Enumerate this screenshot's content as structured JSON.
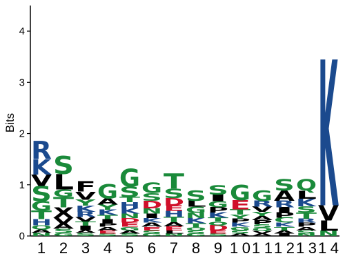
{
  "chart_data": {
    "type": "sequence-logo",
    "title": "",
    "xlabel": "",
    "ylabel": "Bits",
    "ylim": [
      0,
      4.5
    ],
    "yticks": [
      0,
      1,
      2,
      3,
      4
    ],
    "positions": [
      "1",
      "2",
      "3",
      "4",
      "5",
      "6",
      "7",
      "8",
      "9",
      "10",
      "11",
      "12",
      "13",
      "14"
    ],
    "colors": {
      "A": "#000000",
      "C": "#1a8a3a",
      "D": "#d0102a",
      "E": "#d0102a",
      "F": "#000000",
      "G": "#1a8a3a",
      "H": "#1b4a8e",
      "I": "#000000",
      "K": "#1b4a8e",
      "L": "#000000",
      "M": "#000000",
      "N": "#1a8a3a",
      "P": "#000000",
      "Q": "#1a8a3a",
      "R": "#1b4a8e",
      "S": "#1a8a3a",
      "T": "#1a8a3a",
      "V": "#000000",
      "W": "#000000",
      "Y": "#1a8a3a"
    },
    "stacks": [
      [
        [
          "N",
          0.06
        ],
        [
          "A",
          0.07
        ],
        [
          "Q",
          0.08
        ],
        [
          "H",
          0.12
        ],
        [
          "T",
          0.17
        ],
        [
          "G",
          0.18
        ],
        [
          "S",
          0.3
        ],
        [
          "V",
          0.22
        ],
        [
          "K",
          0.3
        ],
        [
          "R",
          0.35
        ]
      ],
      [
        [
          "G",
          0.06
        ],
        [
          "S",
          0.08
        ],
        [
          "A",
          0.1
        ],
        [
          "V",
          0.12
        ],
        [
          "X",
          0.2
        ],
        [
          "T",
          0.2
        ],
        [
          "G",
          0.15
        ],
        [
          "L",
          0.3
        ],
        [
          "S",
          0.35
        ]
      ],
      [
        [
          "S",
          0.06
        ],
        [
          "A",
          0.06
        ],
        [
          "I",
          0.08
        ],
        [
          "T",
          0.08
        ],
        [
          "V",
          0.09
        ],
        [
          "R",
          0.1
        ],
        [
          "K",
          0.12
        ],
        [
          "Y",
          0.12
        ],
        [
          "V",
          0.16
        ],
        [
          "F",
          0.2
        ]
      ],
      [
        [
          "S",
          0.05
        ],
        [
          "E",
          0.06
        ],
        [
          "A",
          0.07
        ],
        [
          "P",
          0.07
        ],
        [
          "I",
          0.08
        ],
        [
          "T",
          0.08
        ],
        [
          "K",
          0.1
        ],
        [
          "Y",
          0.1
        ],
        [
          "A",
          0.12
        ],
        [
          "G",
          0.28
        ]
      ],
      [
        [
          "S",
          0.05
        ],
        [
          "A",
          0.06
        ],
        [
          "G",
          0.07
        ],
        [
          "E",
          0.08
        ],
        [
          "D",
          0.09
        ],
        [
          "N",
          0.09
        ],
        [
          "K",
          0.1
        ],
        [
          "H",
          0.12
        ],
        [
          "T",
          0.1
        ],
        [
          "S",
          0.2
        ],
        [
          "G",
          0.35
        ]
      ],
      [
        [
          "G",
          0.05
        ],
        [
          "S",
          0.06
        ],
        [
          "E",
          0.07
        ],
        [
          "A",
          0.08
        ],
        [
          "K",
          0.09
        ],
        [
          "I",
          0.09
        ],
        [
          "N",
          0.1
        ],
        [
          "D",
          0.15
        ],
        [
          "S",
          0.15
        ],
        [
          "G",
          0.2
        ]
      ],
      [
        [
          "N",
          0.05
        ],
        [
          "L",
          0.06
        ],
        [
          "E",
          0.08
        ],
        [
          "A",
          0.08
        ],
        [
          "T",
          0.1
        ],
        [
          "H",
          0.12
        ],
        [
          "E",
          0.1
        ],
        [
          "D",
          0.15
        ],
        [
          "S",
          0.18
        ],
        [
          "T",
          0.3
        ]
      ],
      [
        [
          "G",
          0.05
        ],
        [
          "S",
          0.06
        ],
        [
          "Q",
          0.06
        ],
        [
          "T",
          0.08
        ],
        [
          "K",
          0.1
        ],
        [
          "N",
          0.1
        ],
        [
          "G",
          0.12
        ],
        [
          "L",
          0.12
        ],
        [
          "S",
          0.2
        ]
      ],
      [
        [
          "S",
          0.05
        ],
        [
          "E",
          0.06
        ],
        [
          "D",
          0.1
        ],
        [
          "Q",
          0.07
        ],
        [
          "T",
          0.08
        ],
        [
          "K",
          0.1
        ],
        [
          "P",
          0.1
        ],
        [
          "G",
          0.12
        ],
        [
          "I",
          0.13
        ],
        [
          "S",
          0.18
        ]
      ],
      [
        [
          "A",
          0.05
        ],
        [
          "S",
          0.06
        ],
        [
          "G",
          0.07
        ],
        [
          "K",
          0.08
        ],
        [
          "P",
          0.08
        ],
        [
          "Y",
          0.08
        ],
        [
          "T",
          0.1
        ],
        [
          "E",
          0.18
        ],
        [
          "G",
          0.3
        ]
      ],
      [
        [
          "A",
          0.05
        ],
        [
          "V",
          0.05
        ],
        [
          "Q",
          0.06
        ],
        [
          "S",
          0.07
        ],
        [
          "P",
          0.08
        ],
        [
          "A",
          0.08
        ],
        [
          "Y",
          0.08
        ],
        [
          "V",
          0.1
        ],
        [
          "R",
          0.12
        ],
        [
          "G",
          0.2
        ]
      ],
      [
        [
          "I",
          0.05
        ],
        [
          "A",
          0.06
        ],
        [
          "T",
          0.07
        ],
        [
          "K",
          0.08
        ],
        [
          "C",
          0.1
        ],
        [
          "P",
          0.1
        ],
        [
          "I",
          0.1
        ],
        [
          "R",
          0.13
        ],
        [
          "A",
          0.2
        ],
        [
          "S",
          0.22
        ]
      ],
      [
        [
          "N",
          0.05
        ],
        [
          "S",
          0.06
        ],
        [
          "A",
          0.07
        ],
        [
          "P",
          0.08
        ],
        [
          "R",
          0.08
        ],
        [
          "T",
          0.12
        ],
        [
          "S",
          0.12
        ],
        [
          "K",
          0.15
        ],
        [
          "L",
          0.16
        ],
        [
          "Q",
          0.22
        ]
      ],
      [
        [
          "N",
          0.1
        ],
        [
          "L",
          0.2
        ],
        [
          "V",
          0.3
        ],
        [
          "K",
          2.85
        ]
      ]
    ]
  }
}
